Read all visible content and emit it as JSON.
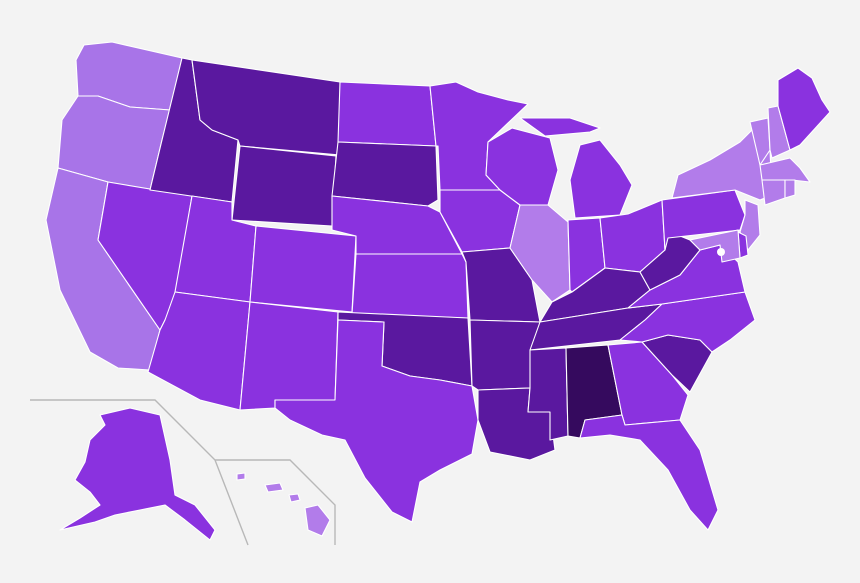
{
  "legend": {
    "palette": {
      "lightest": "#b27cea",
      "light": "#a874e8",
      "medium": "#8a32df",
      "dark": "#6c1fb8",
      "darker": "#5a189f",
      "darkest": "#350a5e"
    }
  },
  "states": [
    {
      "code": "WA",
      "level": "light"
    },
    {
      "code": "OR",
      "level": "light"
    },
    {
      "code": "CA",
      "level": "light"
    },
    {
      "code": "NV",
      "level": "medium"
    },
    {
      "code": "ID",
      "level": "darker"
    },
    {
      "code": "MT",
      "level": "darker"
    },
    {
      "code": "WY",
      "level": "darker"
    },
    {
      "code": "UT",
      "level": "medium"
    },
    {
      "code": "AZ",
      "level": "medium"
    },
    {
      "code": "CO",
      "level": "medium"
    },
    {
      "code": "NM",
      "level": "medium"
    },
    {
      "code": "ND",
      "level": "medium"
    },
    {
      "code": "SD",
      "level": "darker"
    },
    {
      "code": "NE",
      "level": "medium"
    },
    {
      "code": "KS",
      "level": "medium"
    },
    {
      "code": "OK",
      "level": "darker"
    },
    {
      "code": "TX",
      "level": "medium"
    },
    {
      "code": "MN",
      "level": "medium"
    },
    {
      "code": "IA",
      "level": "medium"
    },
    {
      "code": "MO",
      "level": "darker"
    },
    {
      "code": "AR",
      "level": "darker"
    },
    {
      "code": "LA",
      "level": "darker"
    },
    {
      "code": "WI",
      "level": "medium"
    },
    {
      "code": "IL",
      "level": "lightest"
    },
    {
      "code": "MI",
      "level": "medium"
    },
    {
      "code": "IN",
      "level": "medium"
    },
    {
      "code": "OH",
      "level": "medium"
    },
    {
      "code": "KY",
      "level": "darker"
    },
    {
      "code": "TN",
      "level": "darker"
    },
    {
      "code": "MS",
      "level": "darker"
    },
    {
      "code": "AL",
      "level": "darkest"
    },
    {
      "code": "GA",
      "level": "medium"
    },
    {
      "code": "FL",
      "level": "medium"
    },
    {
      "code": "SC",
      "level": "darker"
    },
    {
      "code": "NC",
      "level": "medium"
    },
    {
      "code": "VA",
      "level": "medium"
    },
    {
      "code": "WV",
      "level": "darker"
    },
    {
      "code": "PA",
      "level": "medium"
    },
    {
      "code": "NY",
      "level": "lightest"
    },
    {
      "code": "NJ",
      "level": "lightest"
    },
    {
      "code": "DE",
      "level": "medium"
    },
    {
      "code": "MD",
      "level": "lightest"
    },
    {
      "code": "VT",
      "level": "lightest"
    },
    {
      "code": "NH",
      "level": "lightest"
    },
    {
      "code": "ME",
      "level": "medium"
    },
    {
      "code": "MA",
      "level": "lightest"
    },
    {
      "code": "CT",
      "level": "lightest"
    },
    {
      "code": "RI",
      "level": "lightest"
    },
    {
      "code": "AK",
      "level": "medium"
    },
    {
      "code": "HI",
      "level": "lightest"
    }
  ]
}
